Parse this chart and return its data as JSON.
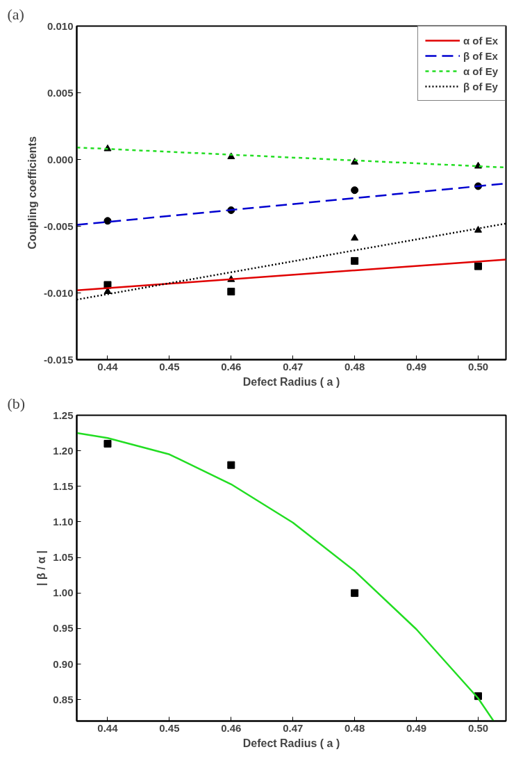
{
  "chart_data": [
    {
      "type": "line",
      "annotations": [
        "(a)"
      ],
      "xlabel": "Defect Radius ( a )",
      "ylabel": "Coupling coefficients",
      "xlim": [
        0.435,
        0.5045
      ],
      "ylim": [
        -0.015,
        0.01
      ],
      "xticks": [
        {
          "value": 0.44,
          "label": "0.44"
        },
        {
          "value": 0.45,
          "label": "0.45"
        },
        {
          "value": 0.46,
          "label": "0.46"
        },
        {
          "value": 0.47,
          "label": "0.47"
        },
        {
          "value": 0.48,
          "label": "0.48"
        },
        {
          "value": 0.49,
          "label": "0.49"
        },
        {
          "value": 0.5,
          "label": "0.50"
        }
      ],
      "yticks": [
        {
          "value": -0.015,
          "label": "-0.015"
        },
        {
          "value": -0.01,
          "label": "-0.010"
        },
        {
          "value": -0.005,
          "label": "-0.005"
        },
        {
          "value": 0,
          "label": "0.000"
        },
        {
          "value": 0.005,
          "label": "0.005"
        },
        {
          "value": 0.01,
          "label": "0.010"
        }
      ],
      "grid": false,
      "legend": "top right",
      "series": [
        {
          "type": "scatter",
          "marker": "square",
          "color": "#000000",
          "x": [
            0.44,
            0.46,
            0.48,
            0.5
          ],
          "values": [
            -0.0094,
            -0.0099,
            -0.0076,
            -0.008
          ]
        },
        {
          "type": "scatter",
          "marker": "circle",
          "color": "#000000",
          "x": [
            0.44,
            0.46,
            0.48,
            0.5
          ],
          "values": [
            -0.0046,
            -0.0038,
            -0.0023,
            -0.002
          ]
        },
        {
          "type": "scatter",
          "marker": "triangle",
          "color": "#000000",
          "x": [
            0.44,
            0.46,
            0.48,
            0.5
          ],
          "values": [
            0.0008,
            0.0002,
            -0.0002,
            -0.0005
          ]
        },
        {
          "type": "scatter",
          "marker": "triangle",
          "color": "#000000",
          "x": [
            0.44,
            0.46,
            0.48,
            0.5
          ],
          "values": [
            -0.0099,
            -0.009,
            -0.0059,
            -0.0053
          ]
        },
        {
          "name": "α of Ex",
          "color": "#e00000",
          "line_style": "solid",
          "x": [
            0.435,
            0.5045
          ],
          "values": [
            -0.0098,
            -0.0075
          ]
        },
        {
          "name": "β of Ex",
          "color": "#0000d0",
          "line_style": "dashed",
          "x": [
            0.435,
            0.5045
          ],
          "values": [
            -0.0049,
            -0.0018
          ]
        },
        {
          "name": "α of Ey",
          "color": "#22dd22",
          "line_style": "dashed_short",
          "x": [
            0.435,
            0.5045
          ],
          "values": [
            0.0009,
            -0.0006
          ]
        },
        {
          "name": "β of Ey",
          "color": "#000000",
          "line_style": "dotted",
          "x": [
            0.435,
            0.5045
          ],
          "values": [
            -0.0105,
            -0.0048
          ]
        }
      ]
    },
    {
      "type": "line",
      "annotations": [
        "(b)"
      ],
      "xlabel": "Defect Radius ( a )",
      "ylabel": "| β / α |",
      "xlim": [
        0.435,
        0.5045
      ],
      "ylim": [
        0.82,
        1.25
      ],
      "xticks": [
        {
          "value": 0.44,
          "label": "0.44"
        },
        {
          "value": 0.45,
          "label": "0.45"
        },
        {
          "value": 0.46,
          "label": "0.46"
        },
        {
          "value": 0.47,
          "label": "0.47"
        },
        {
          "value": 0.48,
          "label": "0.48"
        },
        {
          "value": 0.49,
          "label": "0.49"
        },
        {
          "value": 0.5,
          "label": "0.50"
        }
      ],
      "yticks": [
        {
          "value": 0.85,
          "label": "0.85"
        },
        {
          "value": 0.9,
          "label": "0.90"
        },
        {
          "value": 0.95,
          "label": "0.95"
        },
        {
          "value": 1.0,
          "label": "1.00"
        },
        {
          "value": 1.05,
          "label": "1.05"
        },
        {
          "value": 1.1,
          "label": "1.10"
        },
        {
          "value": 1.15,
          "label": "1.15"
        },
        {
          "value": 1.2,
          "label": "1.20"
        },
        {
          "value": 1.25,
          "label": "1.25"
        }
      ],
      "grid": false,
      "series": [
        {
          "type": "scatter",
          "marker": "square",
          "color": "#000000",
          "x": [
            0.44,
            0.46,
            0.48,
            0.5
          ],
          "values": [
            1.21,
            1.18,
            1.0,
            0.855
          ]
        },
        {
          "color": "#22dd22",
          "line_style": "solid",
          "x": [
            0.435,
            0.44,
            0.45,
            0.46,
            0.47,
            0.48,
            0.49,
            0.5,
            0.5025
          ],
          "values": [
            1.225,
            1.218,
            1.195,
            1.153,
            1.099,
            1.031,
            0.949,
            0.852,
            0.82
          ]
        }
      ]
    }
  ]
}
